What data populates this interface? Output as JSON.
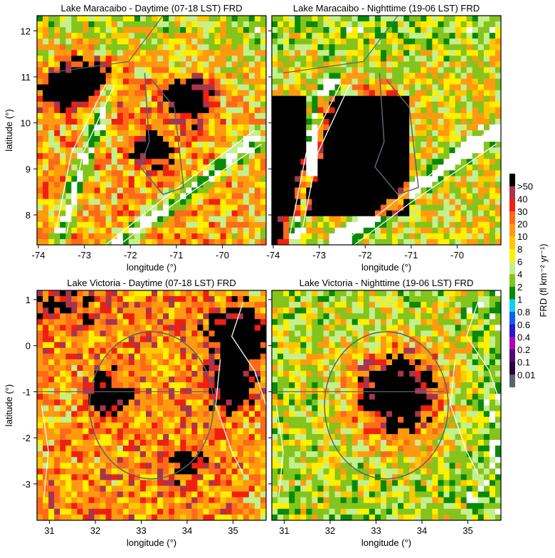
{
  "chart_data": [
    {
      "type": "heatmap",
      "title": "Lake Maracaibo - Daytime (07-18 LST) FRD",
      "xlabel": "longitude (°)",
      "ylabel": "latitude (°)",
      "xlim": [
        -74.03,
        -69.05
      ],
      "ylim": [
        7.35,
        12.33
      ],
      "xticks": [
        "-74",
        "-73",
        "-72",
        "-71",
        "-70"
      ],
      "xtick_values": [
        -74,
        -73,
        -72,
        -71,
        -70
      ],
      "yticks": [
        "12",
        "11",
        "10",
        "9",
        "8"
      ],
      "ytick_values": [
        12,
        11,
        10,
        9,
        8
      ]
    },
    {
      "type": "heatmap",
      "title": "Lake Maracaibo - Nighttime (19-06 LST) FRD",
      "xlabel": "longitude (°)",
      "ylabel": "",
      "xlim": [
        -74.03,
        -69.05
      ],
      "ylim": [
        7.35,
        12.33
      ],
      "xticks": [
        "-74",
        "-73",
        "-72",
        "-71",
        "-70"
      ],
      "xtick_values": [
        -74,
        -73,
        -72,
        -71,
        -70
      ],
      "yticks": [],
      "ytick_values": [
        12,
        11,
        10,
        9,
        8
      ]
    },
    {
      "type": "heatmap",
      "title": "Lake Victoria - Daytime (07-18 LST) FRD",
      "xlabel": "longitude (°)",
      "ylabel": "latitude (°)",
      "xlim": [
        30.73,
        35.72
      ],
      "ylim": [
        -3.79,
        1.2
      ],
      "xticks": [
        "31",
        "32",
        "33",
        "34",
        "35"
      ],
      "xtick_values": [
        31,
        32,
        33,
        34,
        35
      ],
      "yticks": [
        "1",
        "0",
        "-1",
        "-2",
        "-3"
      ],
      "ytick_values": [
        1,
        0,
        -1,
        -2,
        -3
      ]
    },
    {
      "type": "heatmap",
      "title": "Lake Victoria - Nighttime (19-06 LST) FRD",
      "xlabel": "longitude (°)",
      "ylabel": "",
      "xlim": [
        30.73,
        35.72
      ],
      "ylim": [
        -3.79,
        1.2
      ],
      "xticks": [
        "31",
        "32",
        "33",
        "34",
        "35"
      ],
      "xtick_values": [
        31,
        32,
        33,
        34,
        35
      ],
      "yticks": [],
      "ytick_values": [
        1,
        0,
        -1,
        -2,
        -3
      ]
    }
  ],
  "colorbar": {
    "label": "FRD (fl km⁻² yr⁻¹)",
    "labels": [
      ">50",
      "40",
      "30",
      "20",
      "10",
      "8",
      "6",
      "4",
      "2",
      "1",
      "0.8",
      "0.6",
      "0.4",
      "0.2",
      "0.1",
      "0.01"
    ],
    "thresholds": [
      0.01,
      0.1,
      0.2,
      0.4,
      0.6,
      0.8,
      1,
      2,
      4,
      6,
      8,
      10,
      20,
      30,
      40,
      50
    ],
    "colors": [
      "#5b6275",
      "#2a0038",
      "#4a0a78",
      "#b000b8",
      "#2818c8",
      "#1060f0",
      "#10d0f0",
      "#088a08",
      "#84c41c",
      "#c4f08c",
      "#fff000",
      "#ffc800",
      "#ff9a10",
      "#ff6a1a",
      "#f02010",
      "#a8344e",
      "#000000"
    ]
  }
}
